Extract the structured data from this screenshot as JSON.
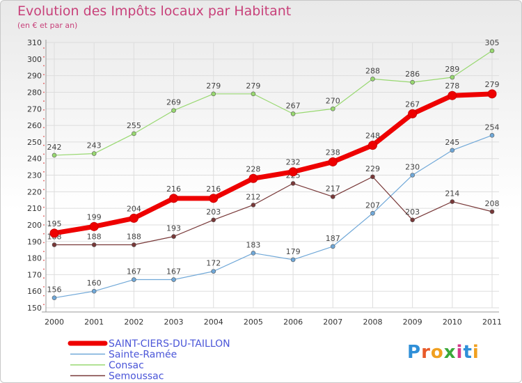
{
  "header": {
    "title": "Evolution des Impôts locaux par Habitant",
    "subtitle": "(en € et par an)"
  },
  "logo": {
    "text": "Proxiti",
    "letters": [
      "P",
      "r",
      "o",
      "x",
      "i",
      "t",
      "i"
    ],
    "colors": [
      "#2f8fd8",
      "#e85a2a",
      "#f0a020",
      "#3aa83a",
      "#d43a8a",
      "#2f8fd8",
      "#f0a020"
    ]
  },
  "chart_data": {
    "type": "line",
    "x": [
      2000,
      2001,
      2002,
      2003,
      2004,
      2005,
      2006,
      2007,
      2008,
      2009,
      2010,
      2011
    ],
    "ylim": [
      150,
      310
    ],
    "yticks": [
      150,
      160,
      170,
      180,
      190,
      200,
      210,
      220,
      230,
      240,
      250,
      260,
      270,
      280,
      290,
      300,
      310
    ],
    "grid": true,
    "legend_position": "bottom-left",
    "series": [
      {
        "name": "SAINT-CIERS-DU-TAILLON",
        "color": "#ee0000",
        "values": [
          195,
          199,
          204,
          216,
          216,
          228,
          232,
          238,
          248,
          267,
          278,
          279
        ]
      },
      {
        "name": "Sainte-Ramée",
        "color": "#70a8d8",
        "values": [
          156,
          160,
          167,
          167,
          172,
          183,
          179,
          187,
          207,
          230,
          245,
          254
        ]
      },
      {
        "name": "Consac",
        "color": "#98d870",
        "values": [
          242,
          243,
          255,
          269,
          279,
          279,
          267,
          270,
          288,
          286,
          289,
          305
        ]
      },
      {
        "name": "Semoussac",
        "color": "#783838",
        "values": [
          188,
          188,
          188,
          193,
          203,
          212,
          225,
          217,
          229,
          203,
          214,
          208
        ]
      }
    ]
  }
}
